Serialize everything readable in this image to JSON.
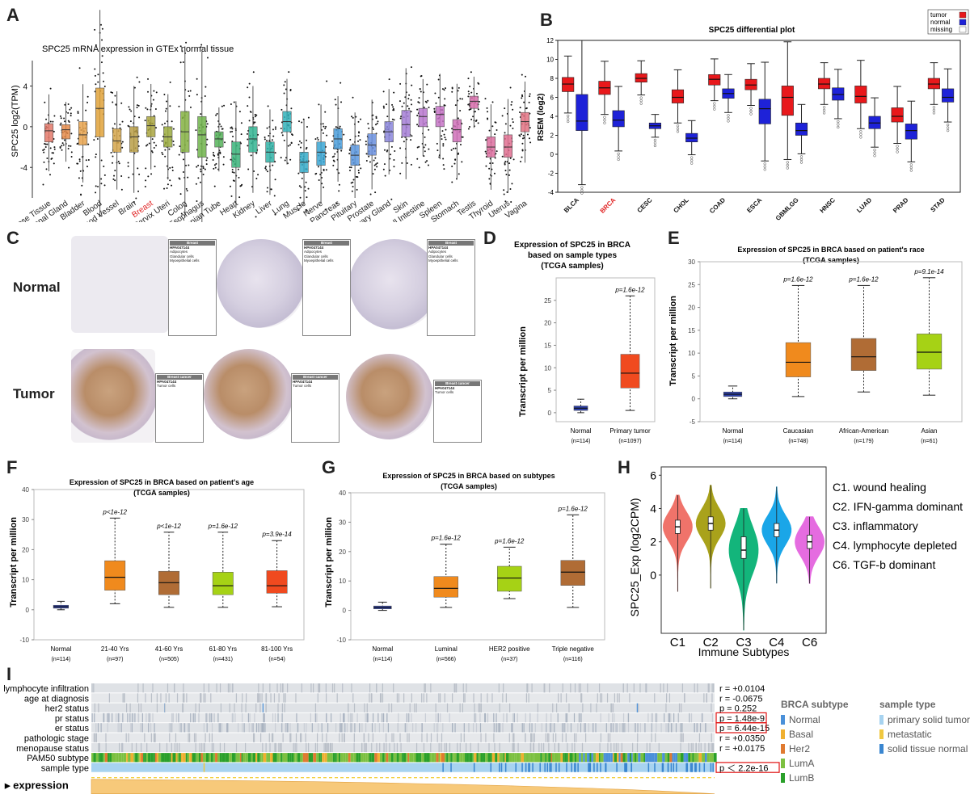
{
  "panels": {
    "A": {
      "label": "A",
      "chart_data": {
        "type": "box",
        "title": "SPC25 mRNA expression in GTEx normal tissue",
        "ylabel": "SPC25  log2(TPM)",
        "yticks": [
          4,
          0,
          -4
        ],
        "ylim": [
          -7,
          6.5
        ],
        "highlight": "Breast",
        "categories": [
          "Adipose Tissue",
          "Adrenal Gland",
          "Bladder",
          "Blood",
          "Blood Vessel",
          "Brain",
          "Breast",
          "Cervix Uteri",
          "Colon",
          "Esophagus",
          "Fallopian Tube",
          "Heart",
          "Kidney",
          "Liver",
          "Lung",
          "Muscle",
          "Nerve",
          "Pancreas",
          "Pituitary",
          "Prostate",
          "Salivary Gland",
          "Skin",
          "Small Intestine",
          "Spleen",
          "Stomach",
          "Testis",
          "Thyroid",
          "Uterus",
          "Vagina"
        ],
        "colors": [
          "#e4796a",
          "#e58b4a",
          "#e8a34e",
          "#e0a23a",
          "#d4a44a",
          "#b99d45",
          "#a9a53e",
          "#9aaa3d",
          "#84b042",
          "#6fb34a",
          "#56b35a",
          "#3ab37a",
          "#33b492",
          "#30b3a7",
          "#32b1ba",
          "#35acc9",
          "#3aa6d4",
          "#4a9edb",
          "#5a96de",
          "#6a8fde",
          "#8b86dc",
          "#a57ed6",
          "#b877cf",
          "#c673c6",
          "#d06fb9",
          "#d86dac",
          "#dd6d9f",
          "#e06f90",
          "#e27283"
        ],
        "medians": [
          -0.4,
          -0.3,
          -0.8,
          1.8,
          -1.4,
          -1.0,
          0.1,
          -1.0,
          -0.5,
          -0.8,
          -1.2,
          -2.7,
          -1.2,
          -2.5,
          0.5,
          -3.5,
          -2.5,
          -1.2,
          -2.8,
          -1.8,
          -0.5,
          0.2,
          1.0,
          1.2,
          -0.3,
          2.5,
          -2.0,
          -2.0,
          0.5
        ],
        "q1": [
          -1.5,
          -1.2,
          -1.8,
          -1.0,
          -2.5,
          -2.5,
          -1.0,
          -2.0,
          -2.5,
          -3.0,
          -2.0,
          -4.0,
          -2.5,
          -3.5,
          -0.5,
          -4.5,
          -3.8,
          -2.2,
          -3.8,
          -2.8,
          -1.5,
          -1.0,
          0.0,
          0.0,
          -1.5,
          1.8,
          -3.0,
          -3.0,
          -0.5
        ],
        "q3": [
          0.3,
          0.2,
          0.5,
          3.8,
          -0.2,
          0.0,
          1.0,
          0.0,
          1.5,
          1.0,
          -0.5,
          -1.5,
          0.0,
          -1.5,
          1.5,
          -2.5,
          -1.5,
          -0.2,
          -1.8,
          -0.7,
          0.5,
          1.6,
          1.8,
          2.0,
          0.7,
          3.0,
          -1.0,
          -0.8,
          1.4
        ]
      }
    },
    "B": {
      "label": "B",
      "chart_data": {
        "type": "box",
        "title": "SPC25 differential plot",
        "ylabel": "RSEM (log2)",
        "ylim": [
          -4,
          12
        ],
        "yticks": [
          -4,
          -2,
          0,
          2,
          4,
          6,
          8,
          10,
          12
        ],
        "highlight": "BRCA",
        "legend": [
          {
            "name": "tumor",
            "color": "#e8181b"
          },
          {
            "name": "normal",
            "color": "#1e22d8"
          },
          {
            "name": "missing",
            "color": "#ffffff"
          }
        ],
        "categories": [
          "BLCA",
          "BRCA",
          "CESC",
          "CHOL",
          "COAD",
          "ESCA",
          "GBMLGG",
          "HNSC",
          "LUAD",
          "PRAD",
          "STAD"
        ],
        "tumor": [
          {
            "q1": 6.6,
            "med": 7.4,
            "q3": 8.1
          },
          {
            "q1": 6.3,
            "med": 7.0,
            "q3": 7.7
          },
          {
            "q1": 7.6,
            "med": 8.0,
            "q3": 8.5
          },
          {
            "q1": 5.4,
            "med": 6.0,
            "q3": 6.8
          },
          {
            "q1": 7.3,
            "med": 7.9,
            "q3": 8.4
          },
          {
            "q1": 6.8,
            "med": 7.3,
            "q3": 7.9
          },
          {
            "q1": 4.1,
            "med": 6.0,
            "q3": 7.2
          },
          {
            "q1": 6.9,
            "med": 7.4,
            "q3": 8.0
          },
          {
            "q1": 5.4,
            "med": 6.1,
            "q3": 7.2
          },
          {
            "q1": 3.4,
            "med": 4.0,
            "q3": 4.9
          },
          {
            "q1": 6.9,
            "med": 7.4,
            "q3": 8.0
          }
        ],
        "normal": [
          {
            "q1": 2.5,
            "med": 3.5,
            "q3": 6.3
          },
          {
            "q1": 2.9,
            "med": 3.6,
            "q3": 4.6
          },
          {
            "q1": 2.7,
            "med": 3.0,
            "q3": 3.3
          },
          {
            "q1": 1.3,
            "med": 1.7,
            "q3": 2.2
          },
          {
            "q1": 5.9,
            "med": 6.4,
            "q3": 6.9
          },
          {
            "q1": 3.2,
            "med": 4.8,
            "q3": 5.8
          },
          {
            "q1": 2.0,
            "med": 2.5,
            "q3": 3.3
          },
          {
            "q1": 5.7,
            "med": 6.3,
            "q3": 7.0
          },
          {
            "q1": 2.7,
            "med": 3.3,
            "q3": 4.0
          },
          {
            "q1": 1.6,
            "med": 2.5,
            "q3": 3.2
          },
          {
            "q1": 5.5,
            "med": 6.0,
            "q3": 6.9
          }
        ]
      }
    },
    "C": {
      "label": "C",
      "row_labels": [
        "Normal",
        "Tumor"
      ],
      "info_title": "HPA047144",
      "normal_header": "Breast",
      "tumor_header": "Breast cancer",
      "sections": [
        "Adipocytes",
        "Glandular cells",
        "Myoepithelial cells",
        "Tumor cells"
      ]
    },
    "D": {
      "label": "D",
      "chart_data": {
        "type": "box",
        "title": [
          "Expression of SPC25 in BRCA",
          "based on sample types",
          "(TCGA samples)"
        ],
        "ylabel": "Transcript per million",
        "ylim": [
          -2,
          30
        ],
        "yticks": [
          0,
          5,
          10,
          15,
          20,
          25
        ],
        "categories": [
          "Normal",
          "Primary tumor"
        ],
        "counts": [
          "(n=114)",
          "(n=1097)"
        ],
        "pvalues": [
          "",
          "p=1.6e-12"
        ],
        "colors": [
          "#2b3ea8",
          "#f04a1f"
        ],
        "boxes": [
          {
            "min": 0,
            "q1": 0.5,
            "med": 1.0,
            "q3": 1.5,
            "max": 3.0
          },
          {
            "min": 0.5,
            "q1": 5.5,
            "med": 8.8,
            "q3": 13.0,
            "max": 26.0
          }
        ]
      }
    },
    "E": {
      "label": "E",
      "chart_data": {
        "type": "box",
        "title": [
          "Expression of SPC25 in BRCA based on patient's race",
          "(TCGA samples)"
        ],
        "ylabel": "Transcript per million",
        "ylim": [
          -5,
          30
        ],
        "yticks": [
          -5,
          0,
          5,
          10,
          15,
          20,
          25,
          30
        ],
        "categories": [
          "Normal",
          "Caucasian",
          "African-American",
          "Asian"
        ],
        "counts": [
          "(n=114)",
          "(n=748)",
          "(n=179)",
          "(n=61)"
        ],
        "pvalues": [
          "",
          "p=1.6e-12",
          "p=1.6e-12",
          "p=9.1e-14"
        ],
        "colors": [
          "#2b3ea8",
          "#f08a1d",
          "#b06c35",
          "#a6d215"
        ],
        "boxes": [
          {
            "min": 0,
            "q1": 0.5,
            "med": 1.0,
            "q3": 1.5,
            "max": 2.8
          },
          {
            "min": 0.5,
            "q1": 4.8,
            "med": 8.0,
            "q3": 12.3,
            "max": 24.8
          },
          {
            "min": 1.5,
            "q1": 6.2,
            "med": 9.2,
            "q3": 13.2,
            "max": 24.8
          },
          {
            "min": 0.8,
            "q1": 6.5,
            "med": 10.2,
            "q3": 14.2,
            "max": 26.5
          }
        ]
      }
    },
    "F": {
      "label": "F",
      "chart_data": {
        "type": "box",
        "title": [
          "Expression of SPC25 in BRCA based on patient's age",
          "(TCGA samples)"
        ],
        "ylabel": "Transcript per million",
        "ylim": [
          -10,
          40
        ],
        "yticks": [
          -10,
          0,
          10,
          20,
          30,
          40
        ],
        "categories": [
          "Normal",
          "21-40 Yrs",
          "41-60 Yrs",
          "61-80 Yrs",
          "81-100 Yrs"
        ],
        "counts": [
          "(n=114)",
          "(n=97)",
          "(n=505)",
          "(n=431)",
          "(n=54)"
        ],
        "pvalues": [
          "",
          "p<1e-12",
          "p<1e-12",
          "p=1.6e-12",
          "p=3.9e-14"
        ],
        "colors": [
          "#2b3ea8",
          "#f08a1d",
          "#b06c35",
          "#a6d215",
          "#f04a1f"
        ],
        "boxes": [
          {
            "min": 0,
            "q1": 0.5,
            "med": 1.0,
            "q3": 1.5,
            "max": 2.8
          },
          {
            "min": 2.0,
            "q1": 6.5,
            "med": 10.8,
            "q3": 16.3,
            "max": 30.5
          },
          {
            "min": 0.8,
            "q1": 5.0,
            "med": 9.0,
            "q3": 12.8,
            "max": 25.8
          },
          {
            "min": 0.8,
            "q1": 5.0,
            "med": 8.0,
            "q3": 12.5,
            "max": 25.8
          },
          {
            "min": 1.0,
            "q1": 5.5,
            "med": 8.0,
            "q3": 13.0,
            "max": 23.0
          }
        ]
      }
    },
    "G": {
      "label": "G",
      "chart_data": {
        "type": "box",
        "title": [
          "Expression of SPC25 in BRCA based on subtypes",
          "(TCGA samples)"
        ],
        "ylabel": "Transcript per million",
        "ylim": [
          -10,
          40
        ],
        "yticks": [
          -10,
          0,
          10,
          20,
          30,
          40
        ],
        "categories": [
          "Normal",
          "Luminal",
          "HER2 positive",
          "Triple negative"
        ],
        "counts": [
          "(n=114)",
          "(n=566)",
          "(n=37)",
          "(n=116)"
        ],
        "pvalues": [
          "",
          "p=1.6e-12",
          "p=1.6e-12",
          "p=1.6e-12"
        ],
        "colors": [
          "#2b3ea8",
          "#f08a1d",
          "#a6d215",
          "#b06c35"
        ],
        "boxes": [
          {
            "min": 0,
            "q1": 0.5,
            "med": 1.0,
            "q3": 1.5,
            "max": 2.8
          },
          {
            "min": 1.0,
            "q1": 4.5,
            "med": 7.5,
            "q3": 11.5,
            "max": 22.5
          },
          {
            "min": 4.0,
            "q1": 6.5,
            "med": 11.0,
            "q3": 15.0,
            "max": 21.5
          },
          {
            "min": 1.0,
            "q1": 8.5,
            "med": 13.0,
            "q3": 17.0,
            "max": 32.5
          }
        ]
      }
    },
    "H": {
      "label": "H",
      "chart_data": {
        "type": "violin",
        "xlabel": "Immune Subtypes",
        "ylabel": "SPC25_Exp (log2CPM)",
        "ylim": [
          -3.5,
          6.5
        ],
        "yticks": [
          0,
          2,
          4,
          6
        ],
        "categories": [
          "C1",
          "C2",
          "C3",
          "C4",
          "C6"
        ],
        "colors": [
          "#f0736a",
          "#a9a21b",
          "#13b57b",
          "#1aa6e8",
          "#e56ce0"
        ],
        "violins": [
          {
            "min": -1.0,
            "q1": 2.5,
            "med": 2.9,
            "q3": 3.3,
            "max": 4.8
          },
          {
            "min": -0.8,
            "q1": 2.7,
            "med": 3.1,
            "q3": 3.5,
            "max": 5.4
          },
          {
            "min": -3.3,
            "q1": 1.0,
            "med": 1.5,
            "q3": 2.3,
            "max": 4.0
          },
          {
            "min": -0.5,
            "q1": 2.3,
            "med": 2.7,
            "q3": 3.1,
            "max": 5.3
          },
          {
            "min": -0.5,
            "q1": 1.6,
            "med": 2.0,
            "q3": 2.4,
            "max": 3.5
          }
        ],
        "legend": [
          "C1. wound healing",
          "C2. IFN-gamma dominant",
          "C3. inflammatory",
          "C4. lymphocyte depleted",
          "C6. TGF-b dominant"
        ]
      }
    },
    "I": {
      "label": "I",
      "rows": [
        "lymphocyte infiltration",
        "age at diagnosis",
        "her2 status",
        "pr status",
        "er status",
        "pathologic stage",
        "menopause status",
        "PAM50 subtype",
        "sample type"
      ],
      "stats": [
        "r = +0.0104",
        "r = -0.0675",
        "p = 0.252",
        "p = 1.48e-9",
        "p = 6.44e-15",
        "r = +0.0350",
        "r = +0.0175",
        "",
        "p ＜ 2.2e-16"
      ],
      "boxed_stats": [
        3,
        4,
        8
      ],
      "expression_label": "▸ expression",
      "legend_subtype_title": "BRCA subtype",
      "legend_subtype": [
        {
          "name": "Normal",
          "color": "#4a90d9"
        },
        {
          "name": "Basal",
          "color": "#f0b030"
        },
        {
          "name": "Her2",
          "color": "#e07a30"
        },
        {
          "name": "LumA",
          "color": "#7cc040"
        },
        {
          "name": "LumB",
          "color": "#2aa02a"
        }
      ],
      "legend_sample_title": "sample type",
      "legend_sample": [
        {
          "name": "primary solid tumor",
          "color": "#a7d3f0"
        },
        {
          "name": "metastatic",
          "color": "#f0c840"
        },
        {
          "name": "solid tissue normal",
          "color": "#3a86d0"
        }
      ]
    }
  }
}
